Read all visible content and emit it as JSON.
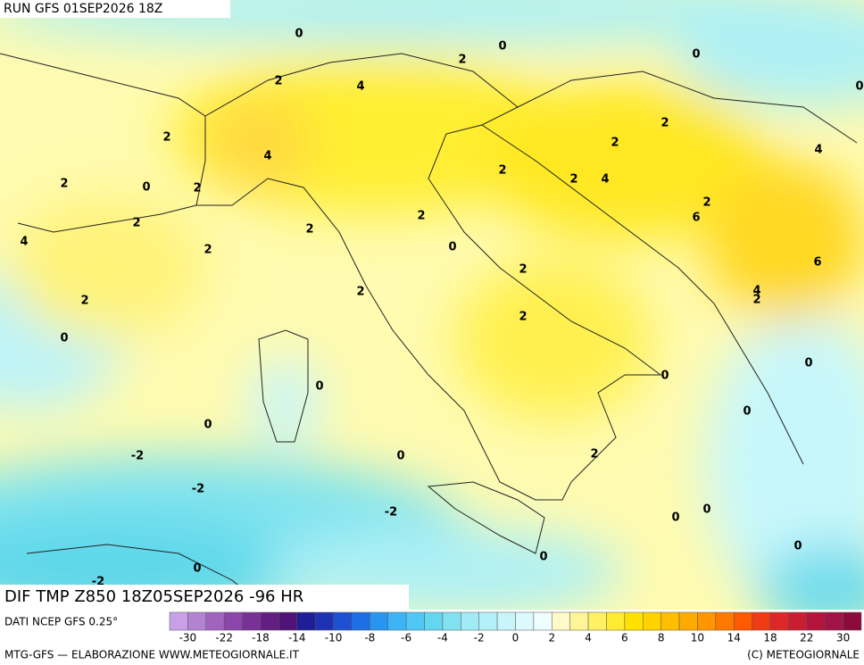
{
  "header": {
    "run": "RUN GFS 01SEP2026 18Z"
  },
  "map": {
    "contour_labels": [
      0,
      0,
      0,
      2,
      0,
      2,
      4,
      2,
      2,
      2,
      4,
      4,
      2,
      2,
      0,
      2,
      2,
      4,
      2,
      2,
      6,
      2,
      2,
      0,
      4,
      2,
      6,
      2,
      2,
      4,
      2,
      2,
      2,
      0,
      0,
      0,
      0,
      0,
      0,
      -2,
      0,
      2,
      -2,
      -2,
      0,
      0,
      0,
      0,
      0,
      -2
    ]
  },
  "footer": {
    "title": "DIF TMP Z850 18Z05SEP2026 -96 HR",
    "source": "DATI NCEP GFS 0.25°",
    "legend": {
      "ticks": [
        -30,
        -22,
        -18,
        -14,
        -10,
        -8,
        -6,
        -4,
        -2,
        0,
        2,
        4,
        6,
        8,
        10,
        14,
        18,
        22,
        30
      ],
      "colors": [
        "#c8a0e6",
        "#b482d2",
        "#a064be",
        "#8c46aa",
        "#783296",
        "#641e82",
        "#501478",
        "#1e1e96",
        "#1e32b4",
        "#1e50d2",
        "#1e6ee6",
        "#2896f0",
        "#3cb4f5",
        "#50c8f5",
        "#64d7f0",
        "#82e1f0",
        "#a0ebf5",
        "#b4f0f8",
        "#c8f5fa",
        "#dcfafc",
        "#eefdfd",
        "#fffac8",
        "#fff596",
        "#fff064",
        "#ffeb32",
        "#ffe100",
        "#ffd200",
        "#ffbe00",
        "#ffaa00",
        "#ff9600",
        "#ff7800",
        "#ff5a00",
        "#f03c14",
        "#dc2828",
        "#c81e32",
        "#b4143c",
        "#a01446",
        "#8c0a3c"
      ]
    },
    "credit_left": "MTG-GFS — ELABORAZIONE WWW.METEOGIORNALE.IT",
    "credit_right": "(C) METEOGIORNALE"
  }
}
